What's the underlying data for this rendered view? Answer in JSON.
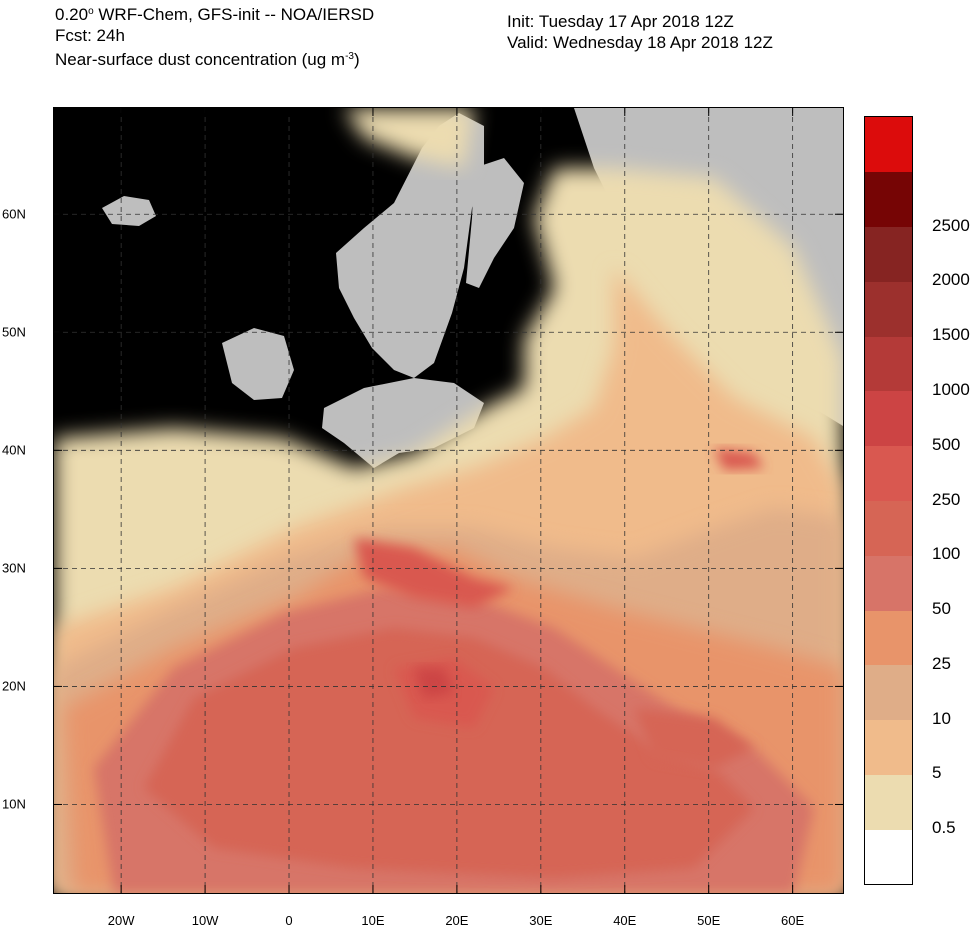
{
  "header": {
    "line1_pre": "0.20",
    "line1_sup": "o",
    "line1_post": " WRF-Chem, GFS-init -- NOA/IERSD",
    "line2": "Fcst: 24h",
    "line3_pre": "Near-surface dust concentration (ug m",
    "line3_sup": "-3",
    "line3_post": ")",
    "init": "Init: Tuesday 17 Apr 2018  12Z",
    "valid": "Valid: Wednesday 18 Apr 2018  12Z"
  },
  "map": {
    "lon_range": [
      -28,
      66
    ],
    "lat_range": [
      2.5,
      69
    ],
    "ocean_color": "#a9d4e2",
    "nodata_land_color": "#bebebe",
    "x_ticks": [
      "20W",
      "10W",
      "0",
      "10E",
      "20E",
      "30E",
      "40E",
      "50E",
      "60E"
    ],
    "x_tick_values": [
      -20,
      -10,
      0,
      10,
      20,
      30,
      40,
      50,
      60
    ],
    "y_ticks": [
      "10N",
      "20N",
      "30N",
      "40N",
      "50N",
      "60N"
    ],
    "y_tick_values": [
      10,
      20,
      30,
      40,
      50,
      60
    ]
  },
  "colorbar": {
    "colors": [
      "#ffffff",
      "#ecdcb0",
      "#f0bb8b",
      "#dfad88",
      "#e8946a",
      "#d77468",
      "#d66555",
      "#d95850",
      "#cc4444",
      "#b43a38",
      "#9c302d",
      "#862422",
      "#760505",
      "#dc0c0c"
    ],
    "labels": [
      "0.5",
      "5",
      "10",
      "25",
      "50",
      "100",
      "250",
      "500",
      "1000",
      "1500",
      "2000",
      "2500"
    ]
  }
}
